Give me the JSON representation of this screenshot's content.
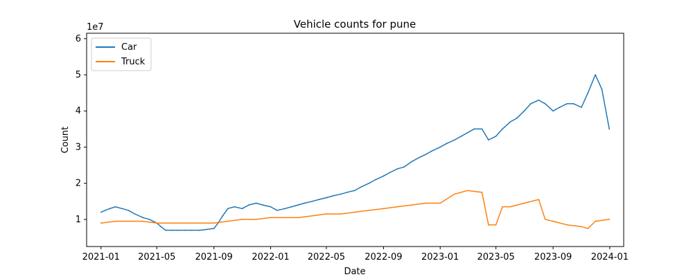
{
  "chart_data": {
    "type": "line",
    "title": "Vehicle counts for pune",
    "xlabel": "Date",
    "ylabel": "Count",
    "y_offset_label": "1e7",
    "xlim": [
      "2020-12-01",
      "2024-01-31"
    ],
    "ylim": [
      2500000,
      61500000
    ],
    "x_ticks": [
      "2021-01",
      "2021-05",
      "2021-09",
      "2022-01",
      "2022-05",
      "2022-09",
      "2023-01",
      "2023-05",
      "2023-09",
      "2024-01"
    ],
    "y_ticks": [
      {
        "value": 10000000,
        "label": "1"
      },
      {
        "value": 20000000,
        "label": "2"
      },
      {
        "value": 30000000,
        "label": "3"
      },
      {
        "value": 40000000,
        "label": "4"
      },
      {
        "value": 50000000,
        "label": "5"
      },
      {
        "value": 60000000,
        "label": "6"
      }
    ],
    "grid": false,
    "legend_placement": "top-left",
    "series": [
      {
        "name": "Car",
        "color": "#1f77b4",
        "x": [
          "2021-01-01",
          "2021-01-10",
          "2021-01-20",
          "2021-02-01",
          "2021-02-15",
          "2021-03-01",
          "2021-03-15",
          "2021-04-01",
          "2021-04-15",
          "2021-05-01",
          "2021-05-10",
          "2021-05-20",
          "2021-06-01",
          "2021-06-15",
          "2021-07-01",
          "2021-07-15",
          "2021-08-01",
          "2021-08-15",
          "2021-09-01",
          "2021-09-10",
          "2021-09-20",
          "2021-10-01",
          "2021-10-15",
          "2021-11-01",
          "2021-11-15",
          "2021-12-01",
          "2021-12-15",
          "2022-01-01",
          "2022-01-15",
          "2022-02-01",
          "2022-02-15",
          "2022-03-01",
          "2022-03-15",
          "2022-04-01",
          "2022-04-15",
          "2022-05-01",
          "2022-05-15",
          "2022-06-01",
          "2022-06-15",
          "2022-07-01",
          "2022-07-15",
          "2022-08-01",
          "2022-08-15",
          "2022-09-01",
          "2022-09-15",
          "2022-10-01",
          "2022-10-15",
          "2022-11-01",
          "2022-11-15",
          "2022-12-01",
          "2022-12-15",
          "2023-01-01",
          "2023-01-15",
          "2023-02-01",
          "2023-02-15",
          "2023-03-01",
          "2023-03-15",
          "2023-04-01",
          "2023-04-15",
          "2023-05-01",
          "2023-05-15",
          "2023-06-01",
          "2023-06-15",
          "2023-07-01",
          "2023-07-15",
          "2023-08-01",
          "2023-08-15",
          "2023-09-01",
          "2023-09-15",
          "2023-10-01",
          "2023-10-15",
          "2023-11-01",
          "2023-11-15",
          "2023-12-01",
          "2023-12-15",
          "2023-12-31"
        ],
        "values": [
          12000000,
          12500000,
          13000000,
          13500000,
          13000000,
          12500000,
          11500000,
          10500000,
          10000000,
          9000000,
          8000000,
          7000000,
          7000000,
          7000000,
          7000000,
          7000000,
          7000000,
          7200000,
          7500000,
          9000000,
          11000000,
          13000000,
          13500000,
          13000000,
          14000000,
          14500000,
          14000000,
          13500000,
          12500000,
          13000000,
          13500000,
          14000000,
          14500000,
          15000000,
          15500000,
          16000000,
          16500000,
          17000000,
          17500000,
          18000000,
          19000000,
          20000000,
          21000000,
          22000000,
          23000000,
          24000000,
          24500000,
          26000000,
          27000000,
          28000000,
          29000000,
          30000000,
          31000000,
          32000000,
          33000000,
          34000000,
          35000000,
          35000000,
          32000000,
          33000000,
          35000000,
          37000000,
          38000000,
          40000000,
          42000000,
          43000000,
          42000000,
          40000000,
          41000000,
          42000000,
          42000000,
          41000000,
          45000000,
          50000000,
          46000000,
          35000000
        ]
      },
      {
        "name": "Truck",
        "color": "#ff7f0e",
        "x": [
          "2021-01-01",
          "2021-02-01",
          "2021-03-01",
          "2021-04-01",
          "2021-05-01",
          "2021-06-01",
          "2021-07-01",
          "2021-08-01",
          "2021-09-01",
          "2021-10-01",
          "2021-11-01",
          "2021-12-01",
          "2022-01-01",
          "2022-02-01",
          "2022-03-01",
          "2022-04-01",
          "2022-05-01",
          "2022-06-01",
          "2022-07-01",
          "2022-08-01",
          "2022-09-01",
          "2022-10-01",
          "2022-11-01",
          "2022-12-01",
          "2023-01-01",
          "2023-02-01",
          "2023-03-01",
          "2023-04-01",
          "2023-04-15",
          "2023-05-01",
          "2023-05-15",
          "2023-06-01",
          "2023-07-01",
          "2023-08-01",
          "2023-08-15",
          "2023-09-01",
          "2023-10-01",
          "2023-11-01",
          "2023-11-15",
          "2023-12-01",
          "2023-12-31"
        ],
        "values": [
          9000000,
          9500000,
          9500000,
          9500000,
          9000000,
          9000000,
          9000000,
          9000000,
          9000000,
          9500000,
          10000000,
          10000000,
          10500000,
          10500000,
          10500000,
          11000000,
          11500000,
          11500000,
          12000000,
          12500000,
          13000000,
          13500000,
          14000000,
          14500000,
          14500000,
          17000000,
          18000000,
          17500000,
          8500000,
          8500000,
          13500000,
          13500000,
          14500000,
          15500000,
          10000000,
          9500000,
          8500000,
          8000000,
          7500000,
          9500000,
          10000000
        ]
      }
    ]
  }
}
